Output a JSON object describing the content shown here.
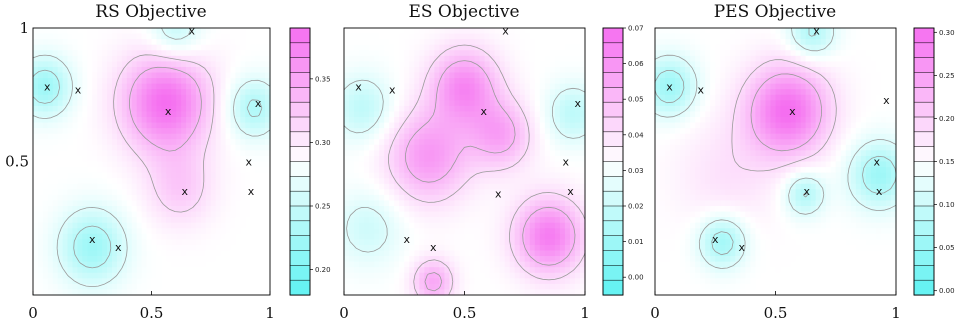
{
  "chart_data": [
    {
      "type": "heatmap",
      "title": "RS Objective",
      "xlim": [
        0,
        1
      ],
      "ylim": [
        0,
        1
      ],
      "x_ticks": [
        "0",
        "0.5",
        "1"
      ],
      "y_ticks": [
        "0.5",
        "1"
      ],
      "colorbar": {
        "range": [
          0.18,
          0.39
        ],
        "ticks": [
          "0.20",
          "0.25",
          "0.30",
          "0.35"
        ],
        "tick_values": [
          0.2,
          0.25,
          0.3,
          0.35
        ]
      },
      "peaks": [
        {
          "x": 0.56,
          "y": 0.72,
          "amp": 1.0,
          "sigma": 0.13
        },
        {
          "x": 0.62,
          "y": 0.4,
          "amp": 0.35,
          "sigma": 0.1
        }
      ],
      "troughs": [
        {
          "x": 0.05,
          "y": 0.78,
          "amp": 0.6,
          "sigma": 0.08
        },
        {
          "x": 0.93,
          "y": 0.7,
          "amp": 0.5,
          "sigma": 0.08
        },
        {
          "x": 0.25,
          "y": 0.18,
          "amp": 0.6,
          "sigma": 0.1
        },
        {
          "x": 0.6,
          "y": 0.98,
          "amp": 0.4,
          "sigma": 0.08
        }
      ],
      "points": [
        {
          "x": 0.06,
          "y": 0.78
        },
        {
          "x": 0.19,
          "y": 0.77
        },
        {
          "x": 0.67,
          "y": 0.99
        },
        {
          "x": 0.57,
          "y": 0.69
        },
        {
          "x": 0.95,
          "y": 0.72
        },
        {
          "x": 0.91,
          "y": 0.5
        },
        {
          "x": 0.92,
          "y": 0.39
        },
        {
          "x": 0.64,
          "y": 0.39
        },
        {
          "x": 0.25,
          "y": 0.21
        },
        {
          "x": 0.36,
          "y": 0.18
        }
      ]
    },
    {
      "type": "heatmap",
      "title": "ES Objective",
      "xlim": [
        0,
        1
      ],
      "ylim": [
        0,
        1
      ],
      "x_ticks": [
        "0",
        "0.5",
        "1"
      ],
      "y_ticks": [],
      "colorbar": {
        "range": [
          -0.005,
          0.07
        ],
        "ticks": [
          "0.00",
          "0.01",
          "0.02",
          "0.03",
          "0.04",
          "0.05",
          "0.06",
          "0.07"
        ],
        "tick_values": [
          0.0,
          0.01,
          0.02,
          0.03,
          0.04,
          0.05,
          0.06,
          0.07
        ]
      },
      "peaks": [
        {
          "x": 0.5,
          "y": 0.78,
          "amp": 0.8,
          "sigma": 0.1
        },
        {
          "x": 0.35,
          "y": 0.52,
          "amp": 0.7,
          "sigma": 0.12
        },
        {
          "x": 0.65,
          "y": 0.6,
          "amp": 0.6,
          "sigma": 0.09
        },
        {
          "x": 0.85,
          "y": 0.22,
          "amp": 0.9,
          "sigma": 0.1
        },
        {
          "x": 0.37,
          "y": 0.05,
          "amp": 0.6,
          "sigma": 0.06
        }
      ],
      "troughs": [
        {
          "x": 0.08,
          "y": 0.7,
          "amp": 0.4,
          "sigma": 0.09
        },
        {
          "x": 0.95,
          "y": 0.68,
          "amp": 0.4,
          "sigma": 0.08
        },
        {
          "x": 0.1,
          "y": 0.25,
          "amp": 0.3,
          "sigma": 0.1
        }
      ],
      "points": [
        {
          "x": 0.06,
          "y": 0.78
        },
        {
          "x": 0.2,
          "y": 0.77
        },
        {
          "x": 0.67,
          "y": 0.99
        },
        {
          "x": 0.58,
          "y": 0.69
        },
        {
          "x": 0.97,
          "y": 0.72
        },
        {
          "x": 0.92,
          "y": 0.5
        },
        {
          "x": 0.94,
          "y": 0.39
        },
        {
          "x": 0.64,
          "y": 0.38
        },
        {
          "x": 0.26,
          "y": 0.21
        },
        {
          "x": 0.37,
          "y": 0.18
        }
      ]
    },
    {
      "type": "heatmap",
      "title": "PES Objective",
      "xlim": [
        0,
        1
      ],
      "ylim": [
        0,
        1
      ],
      "x_ticks": [
        "0",
        "0.5",
        "1"
      ],
      "y_ticks": [],
      "colorbar": {
        "range": [
          -0.005,
          0.305
        ],
        "ticks": [
          "0.00",
          "0.05",
          "0.10",
          "0.15",
          "0.20",
          "0.25",
          "0.30"
        ],
        "tick_values": [
          0.0,
          0.05,
          0.1,
          0.15,
          0.2,
          0.25,
          0.3
        ]
      },
      "peaks": [
        {
          "x": 0.55,
          "y": 0.69,
          "amp": 1.0,
          "sigma": 0.12
        },
        {
          "x": 0.3,
          "y": 0.45,
          "amp": 0.2,
          "sigma": 0.15
        }
      ],
      "troughs": [
        {
          "x": 0.06,
          "y": 0.78,
          "amp": 0.6,
          "sigma": 0.08
        },
        {
          "x": 0.93,
          "y": 0.45,
          "amp": 0.6,
          "sigma": 0.09
        },
        {
          "x": 0.62,
          "y": 0.38,
          "amp": 0.5,
          "sigma": 0.06
        },
        {
          "x": 0.28,
          "y": 0.2,
          "amp": 0.6,
          "sigma": 0.07
        },
        {
          "x": 0.65,
          "y": 0.98,
          "amp": 0.5,
          "sigma": 0.07
        }
      ],
      "points": [
        {
          "x": 0.06,
          "y": 0.78
        },
        {
          "x": 0.19,
          "y": 0.77
        },
        {
          "x": 0.67,
          "y": 0.99
        },
        {
          "x": 0.57,
          "y": 0.69
        },
        {
          "x": 0.96,
          "y": 0.73
        },
        {
          "x": 0.92,
          "y": 0.5
        },
        {
          "x": 0.93,
          "y": 0.39
        },
        {
          "x": 0.63,
          "y": 0.39
        },
        {
          "x": 0.25,
          "y": 0.21
        },
        {
          "x": 0.36,
          "y": 0.18
        }
      ]
    }
  ],
  "colors": {
    "low": "#5ef2f2",
    "mid": "#ffffff",
    "high": "#f56ef0",
    "contour": "#9a9a9a",
    "marker": "#111111"
  },
  "marker_symbol": "x"
}
